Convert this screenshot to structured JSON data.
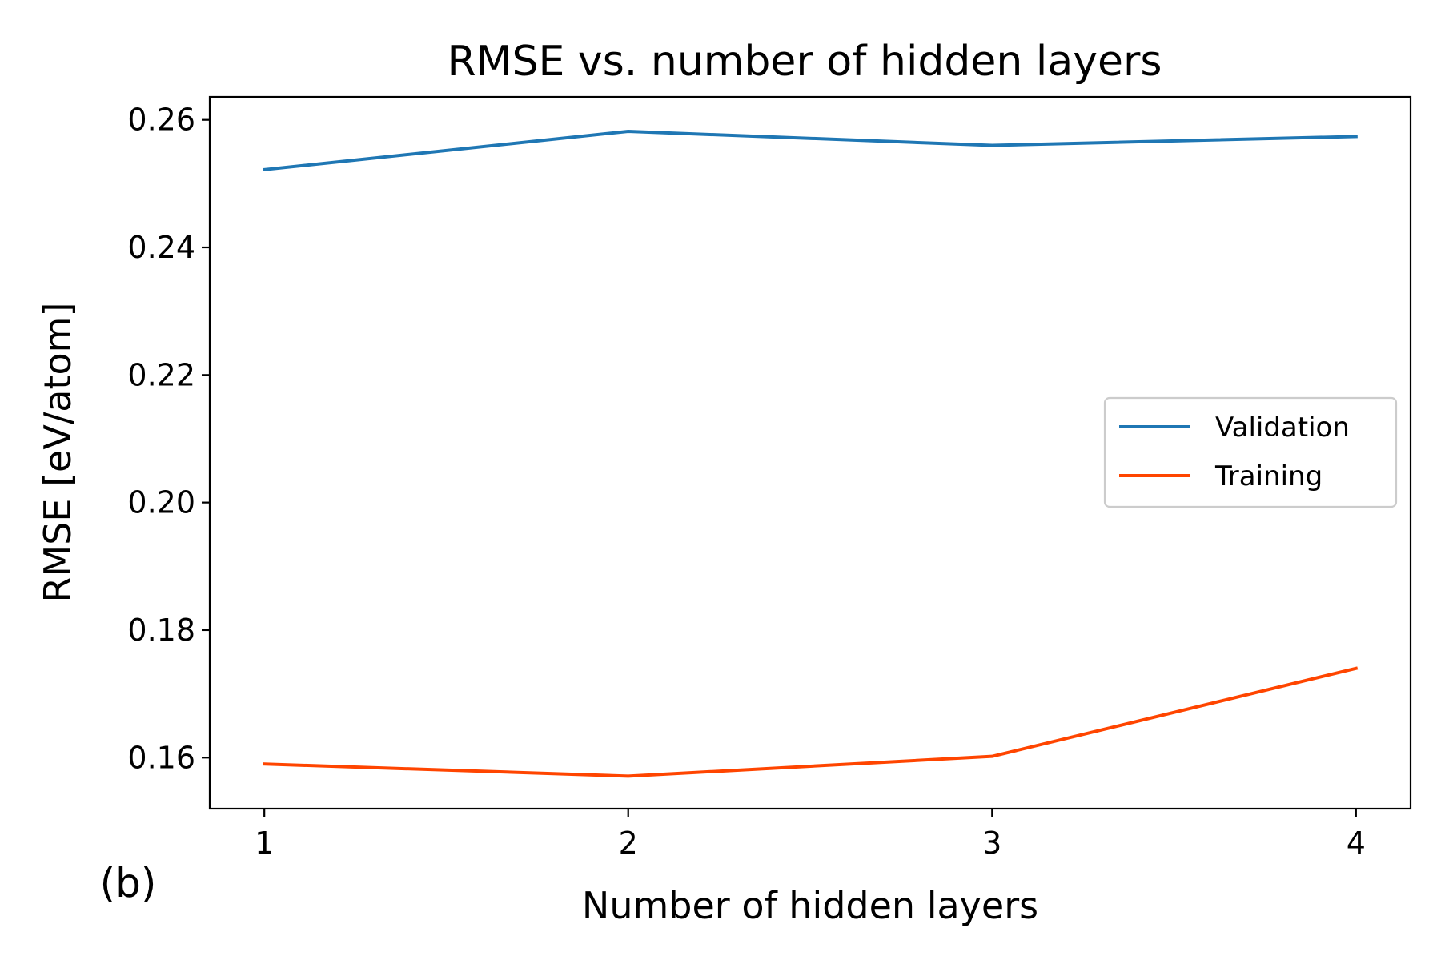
{
  "figure": {
    "panel_label": "(b)"
  },
  "chart_data": {
    "type": "line",
    "title": "RMSE vs. number of hidden layers",
    "xlabel": "Number of hidden layers",
    "ylabel": "RMSE [eV/atom]",
    "x": [
      1,
      2,
      3,
      4
    ],
    "x_ticks": [
      1,
      2,
      3,
      4
    ],
    "x_tick_labels": [
      "1",
      "2",
      "3",
      "4"
    ],
    "xlim": [
      0.85,
      4.15
    ],
    "y_ticks": [
      0.16,
      0.18,
      0.2,
      0.22,
      0.24,
      0.26
    ],
    "y_tick_labels": [
      "0.16",
      "0.18",
      "0.20",
      "0.22",
      "0.24",
      "0.26"
    ],
    "ylim": [
      0.152,
      0.2636
    ],
    "grid": false,
    "legend_position": "center-right",
    "series": [
      {
        "name": "Validation",
        "color": "#1f77b4",
        "values": [
          0.2522,
          0.2582,
          0.256,
          0.2574
        ]
      },
      {
        "name": "Training",
        "color": "#ff4500",
        "values": [
          0.159,
          0.1571,
          0.1602,
          0.174
        ]
      }
    ]
  }
}
